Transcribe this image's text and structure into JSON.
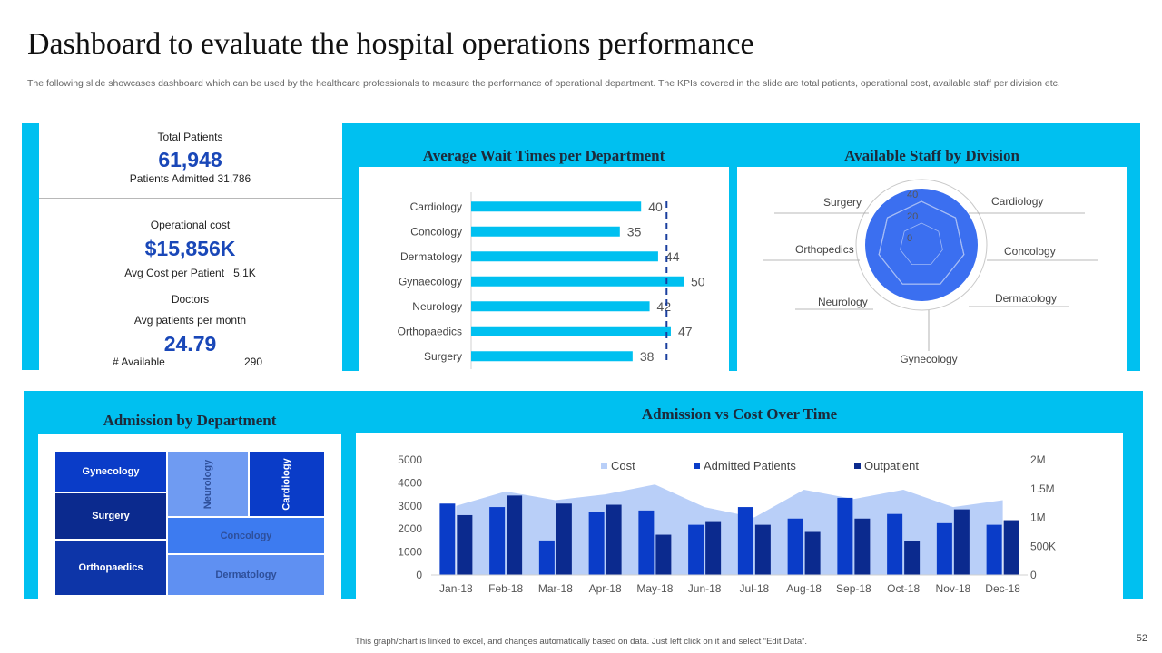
{
  "page": {
    "title": "Dashboard to evaluate the hospital operations performance",
    "subtitle": "The following slide showcases dashboard which can be used by the healthcare professionals to measure the performance of operational department. The KPIs covered in the slide are total patients, operational cost, available staff per division etc.",
    "footer": "This graph/chart is linked to excel, and changes automatically based on data. Just left click on it and select “Edit Data”.",
    "page_number": "52"
  },
  "colors": {
    "accent": "#00c0f0",
    "kpi_blue": "#1947b8",
    "bar_blue": "#00c0f0",
    "radar_fill": "#3b6ff0"
  },
  "kpis": {
    "total_patients_label": "Total Patients",
    "total_patients_value": "61,948",
    "patients_admitted": "Patients Admitted 31,786",
    "operational_cost_label": "Operational cost",
    "operational_cost_value": "$15,856K",
    "avg_cost_label": "Avg  Cost per Patient",
    "avg_cost_value": "5.1K",
    "doctors_label": "Doctors",
    "avg_patients_label": "Avg  patients per month",
    "avg_patients_value": "24.79",
    "available_label": "# Available",
    "available_value": "290"
  },
  "chart_data": [
    {
      "type": "bar",
      "orientation": "horizontal",
      "title": "Average Wait Times per Department",
      "categories": [
        "Cardiology",
        "Concology",
        "Dermatology",
        "Gynaecology",
        "Neurology",
        "Orthopaedics",
        "Surgery"
      ],
      "values": [
        40,
        35,
        44,
        50,
        42,
        47,
        38
      ],
      "xlim": [
        0,
        50
      ],
      "target_line": 46
    },
    {
      "type": "radar",
      "title": "Available Staff by Division",
      "categories": [
        "Cardiology",
        "Concology",
        "Dermatology",
        "Gynecology",
        "Neurology",
        "Orthopedics",
        "Surgery"
      ],
      "values": [
        40,
        40,
        40,
        40,
        40,
        40,
        40
      ],
      "rlim": [
        0,
        60
      ],
      "tick_labels": [
        "0",
        "20",
        "40"
      ]
    },
    {
      "type": "treemap",
      "title": "Admission by Department",
      "items": [
        {
          "label": "Gynecology",
          "color": "#0a3cc8"
        },
        {
          "label": "Surgery",
          "color": "#0b2a8e"
        },
        {
          "label": "Orthopaedics",
          "color": "#0d35a8"
        },
        {
          "label": "Neurology",
          "color": "#6f9bf2"
        },
        {
          "label": "Cardiology",
          "color": "#0a3cc8"
        },
        {
          "label": "Concology",
          "color": "#3d7bf0"
        },
        {
          "label": "Dermatology",
          "color": "#5f90f2"
        }
      ]
    },
    {
      "type": "bar+area",
      "title": "Admission vs Cost Over Time",
      "categories": [
        "Jan-18",
        "Feb-18",
        "Mar-18",
        "Apr-18",
        "May-18",
        "Jun-18",
        "Jul-18",
        "Aug-18",
        "Sep-18",
        "Oct-18",
        "Nov-18",
        "Dec-18"
      ],
      "series": [
        {
          "name": "Cost",
          "type": "area",
          "axis": "right",
          "values": [
            1200000,
            1450000,
            1300000,
            1400000,
            1570000,
            1180000,
            1000000,
            1480000,
            1320000,
            1480000,
            1180000,
            1300000
          ]
        },
        {
          "name": "Admitted Patients",
          "type": "bar",
          "axis": "left",
          "values": [
            3100,
            2950,
            1500,
            2750,
            2800,
            2180,
            2950,
            2450,
            3350,
            2650,
            2250,
            2180
          ]
        },
        {
          "name": "Outpatient",
          "type": "bar",
          "axis": "left",
          "values": [
            2600,
            3450,
            3100,
            3050,
            1750,
            2300,
            2180,
            1870,
            2450,
            1470,
            2850,
            2380
          ]
        }
      ],
      "ylim_left": [
        0,
        5000
      ],
      "yticks_left": [
        "0",
        "1000",
        "2000",
        "3000",
        "4000",
        "5000"
      ],
      "ylim_right": [
        0,
        2000000
      ],
      "yticks_right": [
        "0",
        "500K",
        "1M",
        "1.5M",
        "2M"
      ],
      "legend": "top-center"
    }
  ]
}
